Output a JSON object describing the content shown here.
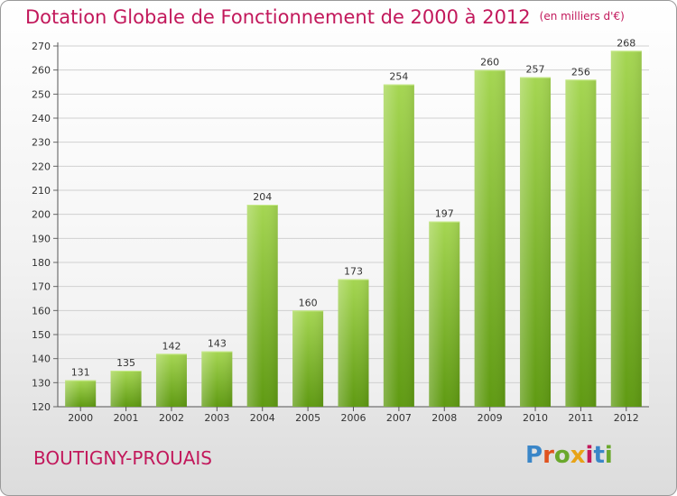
{
  "chart_data": {
    "type": "bar",
    "title": "Dotation Globale de Fonctionnement de 2000 à 2012",
    "subtitle": "(en milliers d'€)",
    "categories": [
      "2000",
      "2001",
      "2002",
      "2003",
      "2004",
      "2005",
      "2006",
      "2007",
      "2008",
      "2009",
      "2010",
      "2011",
      "2012"
    ],
    "values": [
      131,
      135,
      142,
      143,
      204,
      160,
      173,
      254,
      197,
      260,
      257,
      256,
      268
    ],
    "ylim": [
      120,
      270
    ],
    "yticks": [
      120,
      130,
      140,
      150,
      160,
      170,
      180,
      190,
      200,
      210,
      220,
      230,
      240,
      250,
      260,
      270
    ],
    "grid": true,
    "bar_color": "#7cbf2a",
    "xlabel": "",
    "ylabel": ""
  },
  "footer": {
    "city": "BOUTIGNY-PROUAIS",
    "logo_text": "Proxiti"
  },
  "colors": {
    "title": "#c2185b",
    "bar_top": "#a5d652",
    "bar_bottom": "#5f9a12"
  }
}
